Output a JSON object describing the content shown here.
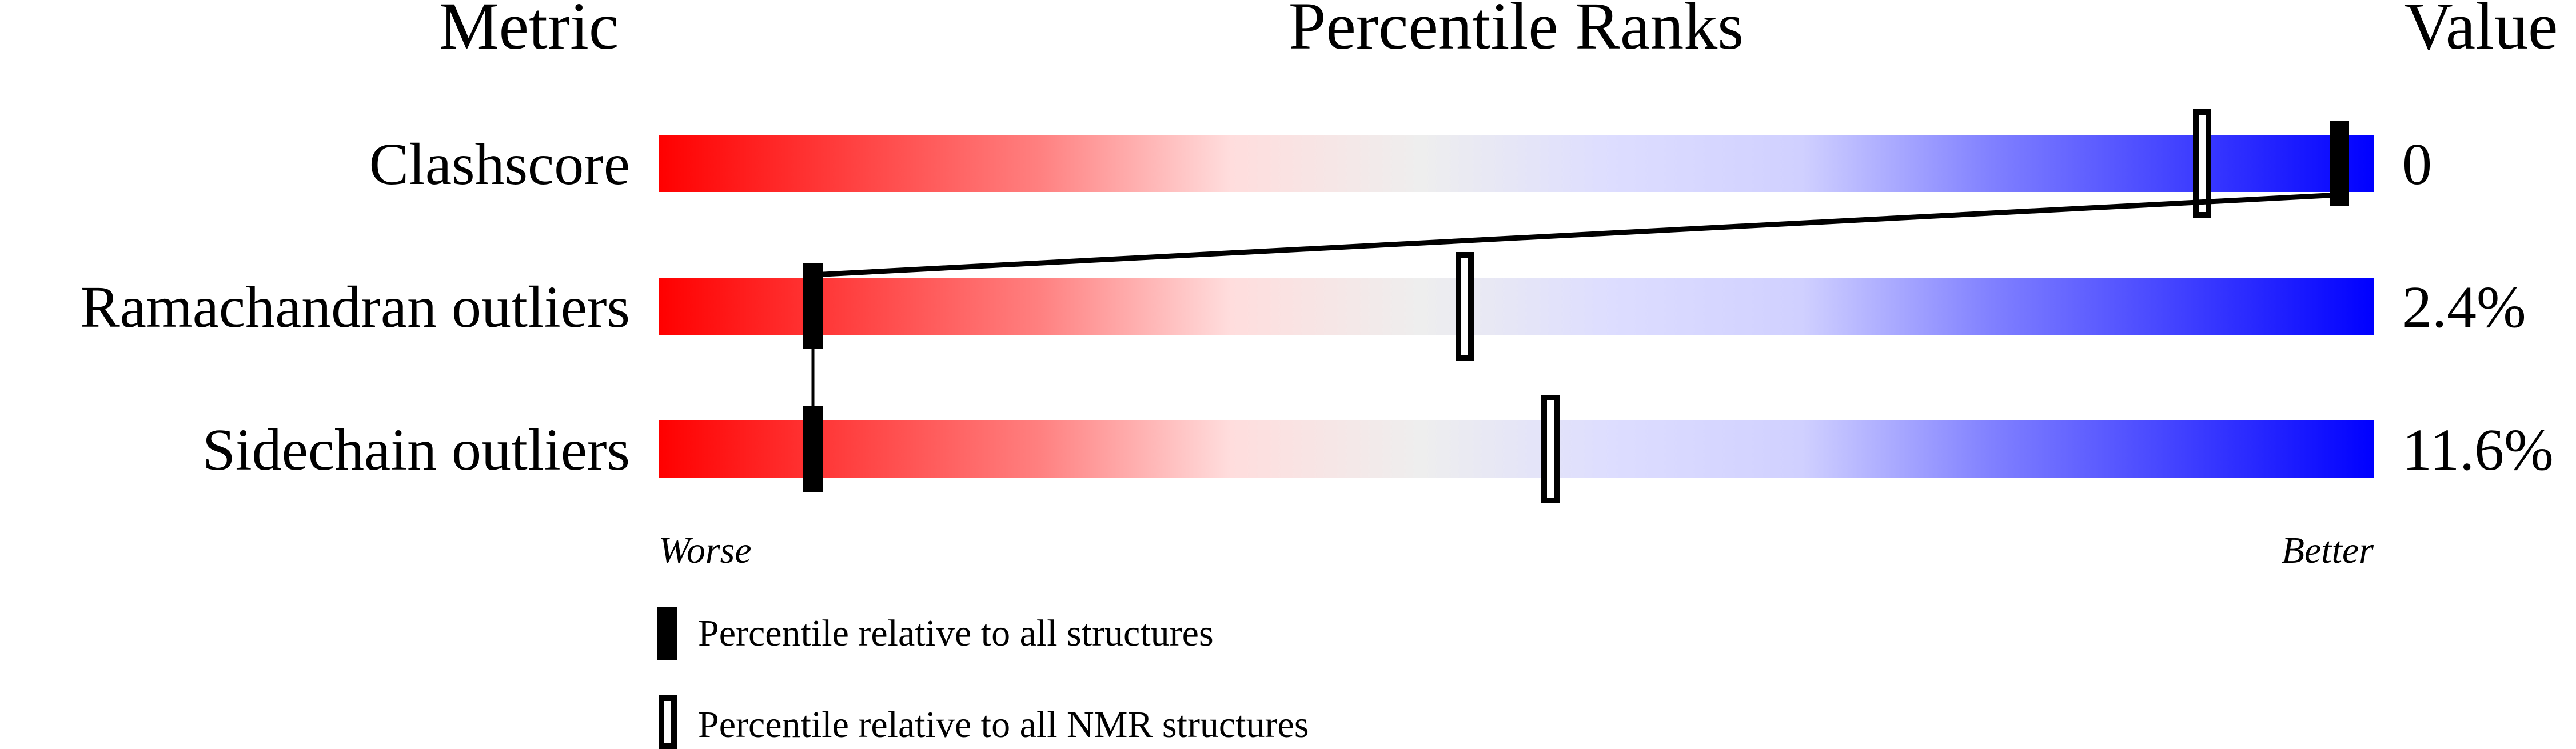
{
  "chart_data": {
    "type": "percentile-ranks",
    "headers": {
      "metric": "Metric",
      "title": "Percentile Ranks",
      "value": "Value"
    },
    "axis": {
      "left": "Worse",
      "right": "Better",
      "range": [
        0,
        100
      ]
    },
    "gradient_colors": [
      "#ff0000",
      "#ff4040",
      "#ff8080",
      "#ffdddd",
      "#eeeeee",
      "#ddddff",
      "#d0d0ff",
      "#8080ff",
      "#4040ff",
      "#0000ff"
    ],
    "rows": [
      {
        "metric": "Clashscore",
        "value": "0",
        "percentile_all": 98,
        "percentile_nmr": 90
      },
      {
        "metric": "Ramachandran outliers",
        "value": "2.4%",
        "percentile_all": 9,
        "percentile_nmr": 47
      },
      {
        "metric": "Sidechain outliers",
        "value": "11.6%",
        "percentile_all": 9,
        "percentile_nmr": 52
      }
    ],
    "legend": [
      {
        "marker": "filled",
        "label": "Percentile relative to all structures"
      },
      {
        "marker": "open",
        "label": "Percentile relative to all NMR structures"
      }
    ]
  }
}
